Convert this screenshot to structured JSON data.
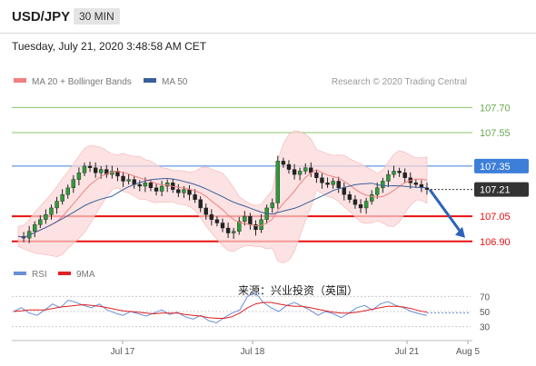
{
  "header": {
    "symbol": "USD/JPY",
    "timeframe": "30 MIN",
    "timestamp": "Tuesday, July 21, 2020 3:48:58 AM CET"
  },
  "legend": {
    "ma20_label": "MA 20 + Bollinger Bands",
    "ma50_label": "MA 50",
    "ma20_color": "#f08080",
    "ma50_color": "#3a5f9a",
    "credit": "Research © 2020 Trading Central"
  },
  "rsi_legend": {
    "rsi_label": "RSI",
    "ma9_label": "9MA",
    "rsi_color": "#6a8fd8",
    "ma9_color": "#e02020"
  },
  "watermark": "来源：兴业投资（英国）",
  "chart_data": [
    {
      "type": "line",
      "subtype": "candlestick",
      "x_ticks": [
        "Jul 17",
        "Jul 18",
        "Jul 21",
        "Aug 5"
      ],
      "ylim": [
        106.85,
        107.8
      ],
      "levels": [
        {
          "value": 107.7,
          "label": "107.70",
          "color": "#8cc068",
          "style": "thin"
        },
        {
          "value": 107.55,
          "label": "107.55",
          "color": "#8cc068",
          "style": "thin"
        },
        {
          "value": 107.35,
          "label": "107.35",
          "color": "#3d7fd8",
          "style": "thin",
          "badge": true
        },
        {
          "value": 107.21,
          "label": "107.21",
          "color": "#333333",
          "style": "dotted",
          "badge": true
        },
        {
          "value": 107.05,
          "label": "107.05",
          "color": "#e81010",
          "style": "thick"
        },
        {
          "value": 106.9,
          "label": "106.90",
          "color": "#e81010",
          "style": "thick"
        }
      ],
      "price_path": [
        106.93,
        106.92,
        106.96,
        107.0,
        107.03,
        107.06,
        107.1,
        107.14,
        107.18,
        107.22,
        107.27,
        107.31,
        107.35,
        107.34,
        107.31,
        107.33,
        107.3,
        107.32,
        107.29,
        107.26,
        107.27,
        107.24,
        107.23,
        107.25,
        107.22,
        107.2,
        107.23,
        107.25,
        107.21,
        107.19,
        107.21,
        107.18,
        107.15,
        107.1,
        107.06,
        107.03,
        107.01,
        106.98,
        106.95,
        106.96,
        107.02,
        107.05,
        107.0,
        106.97,
        107.03,
        107.1,
        107.13,
        107.38,
        107.36,
        107.33,
        107.3,
        107.32,
        107.34,
        107.31,
        107.28,
        107.25,
        107.24,
        107.26,
        107.22,
        107.18,
        107.15,
        107.12,
        107.1,
        107.14,
        107.18,
        107.22,
        107.26,
        107.3,
        107.32,
        107.31,
        107.28,
        107.25,
        107.24,
        107.22,
        107.21
      ],
      "projection": {
        "from": 107.21,
        "to": 106.9,
        "color": "#2d63b8"
      },
      "series": [
        {
          "name": "MA 20 + Bollinger Bands"
        },
        {
          "name": "MA 50"
        }
      ]
    },
    {
      "type": "line",
      "ylim": [
        20,
        80
      ],
      "y_ticks": [
        70,
        50,
        30
      ],
      "series": [
        {
          "name": "RSI",
          "values": [
            50,
            55,
            48,
            45,
            52,
            60,
            55,
            65,
            62,
            58,
            55,
            60,
            52,
            48,
            45,
            50,
            47,
            44,
            48,
            52,
            46,
            49,
            43,
            40,
            45,
            38,
            35,
            42,
            48,
            52,
            70,
            75,
            62,
            55,
            50,
            58,
            62,
            57,
            52,
            45,
            50,
            47,
            42,
            48,
            55,
            58,
            52,
            60,
            63,
            58,
            55,
            50,
            47,
            45
          ]
        },
        {
          "name": "9MA",
          "values": [
            50,
            51,
            52,
            52,
            52,
            54,
            56,
            57,
            58,
            59,
            58,
            57,
            55,
            53,
            51,
            50,
            49,
            48,
            47,
            48,
            48,
            48,
            46,
            45,
            44,
            42,
            41,
            41,
            43,
            48,
            55,
            60,
            62,
            62,
            60,
            58,
            57,
            57,
            55,
            53,
            51,
            49,
            48,
            48,
            49,
            51,
            53,
            55,
            57,
            57,
            56,
            54,
            51,
            49
          ]
        }
      ]
    }
  ]
}
